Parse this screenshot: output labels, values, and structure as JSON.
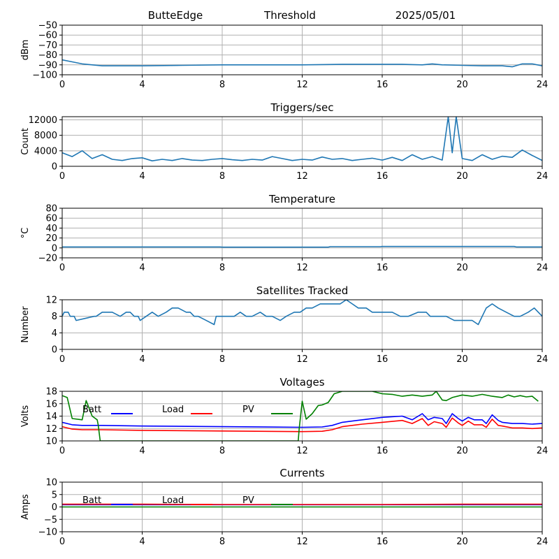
{
  "header": {
    "station": "ButteEdge",
    "title": "Threshold",
    "date": "2025/05/01"
  },
  "colors": {
    "series": "#1f77b4",
    "batt": "#0000ff",
    "load": "#ff0000",
    "pv": "#008000",
    "grid": "#b0b0b0"
  },
  "chart_data": [
    {
      "type": "line",
      "title": "",
      "xlabel": "",
      "ylabel": "dBm",
      "xlim": [
        0,
        24
      ],
      "xticks": [
        0,
        4,
        8,
        12,
        16,
        20,
        24
      ],
      "ylim": [
        -100,
        -50
      ],
      "yticks": [
        -100,
        -90,
        -80,
        -70,
        -60,
        -50
      ],
      "grid": true,
      "series": [
        {
          "x": [
            0,
            0.5,
            1,
            1.5,
            2,
            3,
            4,
            6,
            8,
            10,
            12,
            14,
            16,
            17,
            18,
            18.5,
            19,
            20,
            21,
            22,
            22.5,
            23,
            23.5,
            24
          ],
          "y": [
            -85,
            -87,
            -89,
            -90,
            -91,
            -91,
            -91,
            -90.5,
            -90,
            -90,
            -90,
            -89.5,
            -89.5,
            -89.5,
            -90,
            -89,
            -90,
            -90.5,
            -91,
            -91,
            -92,
            -89,
            -89,
            -91
          ]
        }
      ]
    },
    {
      "type": "line",
      "title": "Triggers/sec",
      "xlabel": "",
      "ylabel": "Count",
      "xlim": [
        0,
        24
      ],
      "xticks": [
        0,
        4,
        8,
        12,
        16,
        20,
        24
      ],
      "ylim": [
        0,
        12800
      ],
      "yticks": [
        0,
        4000,
        8000,
        12000
      ],
      "grid": true,
      "series": [
        {
          "x": [
            0,
            0.5,
            1,
            1.5,
            2,
            2.5,
            3,
            3.5,
            4,
            4.5,
            5,
            5.5,
            6,
            6.5,
            7,
            7.5,
            8,
            8.5,
            9,
            9.5,
            10,
            10.5,
            11,
            11.5,
            12,
            12.5,
            13,
            13.5,
            14,
            14.5,
            15,
            15.5,
            16,
            16.5,
            17,
            17.5,
            18,
            18.5,
            19,
            19.3,
            19.5,
            19.7,
            20,
            20.5,
            21,
            21.5,
            22,
            22.5,
            23,
            23.5,
            24
          ],
          "y": [
            3500,
            2500,
            4000,
            2000,
            3000,
            1800,
            1500,
            2000,
            2200,
            1400,
            1800,
            1500,
            2000,
            1600,
            1500,
            1800,
            2000,
            1700,
            1500,
            1800,
            1600,
            2500,
            2000,
            1500,
            1800,
            1600,
            2400,
            1800,
            2000,
            1500,
            1800,
            2100,
            1600,
            2300,
            1500,
            3000,
            1800,
            2500,
            1600,
            12800,
            3500,
            12800,
            2000,
            1500,
            3000,
            1800,
            2600,
            2300,
            4200,
            2800,
            1500
          ]
        }
      ]
    },
    {
      "type": "line",
      "title": "Temperature",
      "xlabel": "",
      "ylabel": "°C",
      "xlim": [
        0,
        24
      ],
      "xticks": [
        0,
        4,
        8,
        12,
        16,
        20,
        24
      ],
      "ylim": [
        -20,
        80
      ],
      "yticks": [
        -20,
        0,
        20,
        40,
        60,
        80
      ],
      "grid": true,
      "series": [
        {
          "x": [
            0,
            7.9,
            8,
            13.3,
            13.4,
            15.9,
            16,
            22.6,
            22.7,
            24
          ],
          "y": [
            2,
            2,
            1.5,
            1.5,
            2.5,
            2.5,
            3,
            3,
            2,
            2
          ]
        }
      ]
    },
    {
      "type": "line",
      "title": "Satellites Tracked",
      "xlabel": "",
      "ylabel": "Number",
      "xlim": [
        0,
        24
      ],
      "xticks": [
        0,
        4,
        8,
        12,
        16,
        20,
        24
      ],
      "ylim": [
        0,
        12
      ],
      "yticks": [
        0,
        4,
        8,
        12
      ],
      "grid": true,
      "series": [
        {
          "x": [
            0,
            0.1,
            0.3,
            0.4,
            0.6,
            0.7,
            1.6,
            1.7,
            2,
            2.5,
            2.9,
            3.2,
            3.4,
            3.6,
            3.8,
            3.9,
            4.2,
            4.5,
            4.8,
            5.2,
            5.5,
            5.8,
            6.2,
            6.4,
            6.6,
            6.8,
            7.2,
            7.6,
            7.7,
            8,
            8.6,
            8.9,
            9.2,
            9.5,
            9.9,
            10.2,
            10.5,
            10.9,
            11.2,
            11.6,
            11.9,
            12.2,
            12.5,
            12.9,
            13.3,
            13.9,
            14.2,
            14.5,
            14.8,
            15.2,
            15.5,
            15.9,
            16.2,
            16.5,
            16.9,
            17.3,
            17.8,
            18.2,
            18.4,
            18.6,
            18.9,
            19.2,
            19.6,
            19.9,
            20.5,
            20.8,
            21,
            21.2,
            21.5,
            21.8,
            22.2,
            22.6,
            22.9,
            23.3,
            23.6,
            24
          ],
          "y": [
            8,
            9,
            9,
            8,
            8,
            7,
            8,
            8,
            9,
            9,
            8,
            9,
            9,
            8,
            8,
            7,
            8,
            9,
            8,
            9,
            10,
            10,
            9,
            9,
            8,
            8,
            7,
            6,
            8,
            8,
            8,
            9,
            8,
            8,
            9,
            8,
            8,
            7,
            8,
            9,
            9,
            10,
            10,
            11,
            11,
            11,
            12,
            11,
            10,
            10,
            9,
            9,
            9,
            9,
            8,
            8,
            9,
            9,
            8,
            8,
            8,
            8,
            7,
            7,
            7,
            6,
            8,
            10,
            11,
            10,
            9,
            8,
            8,
            9,
            10,
            8
          ]
        }
      ]
    },
    {
      "type": "line",
      "title": "Voltages",
      "xlabel": "",
      "ylabel": "Volts",
      "xlim": [
        0,
        24
      ],
      "xticks": [
        0,
        4,
        8,
        12,
        16,
        20,
        24
      ],
      "ylim": [
        10,
        18
      ],
      "yticks": [
        10,
        12,
        14,
        16,
        18
      ],
      "grid": true,
      "legend": "top-left, horizontal",
      "series": [
        {
          "name": "Batt",
          "color": "#0000ff",
          "x": [
            0,
            0.5,
            1,
            2,
            4,
            8,
            12,
            13,
            13.5,
            14,
            15,
            16,
            17,
            17.5,
            18,
            18.3,
            18.6,
            19,
            19.2,
            19.5,
            19.8,
            20,
            20.3,
            20.6,
            21,
            21.2,
            21.5,
            21.8,
            22,
            22.5,
            23,
            23.5,
            24
          ],
          "y": [
            13,
            12.6,
            12.5,
            12.5,
            12.4,
            12.3,
            12.2,
            12.25,
            12.5,
            13,
            13.4,
            13.8,
            14,
            13.4,
            14.4,
            13.4,
            13.8,
            13.6,
            12.8,
            14.4,
            13.6,
            13.2,
            13.8,
            13.4,
            13.4,
            12.8,
            14.2,
            13.3,
            13,
            12.8,
            12.8,
            12.7,
            12.8
          ]
        },
        {
          "name": "Load",
          "color": "#ff0000",
          "x": [
            0,
            0.5,
            1,
            2,
            4,
            8,
            12,
            13,
            13.5,
            14,
            15,
            16,
            17,
            17.5,
            18,
            18.3,
            18.6,
            19,
            19.2,
            19.5,
            19.8,
            20,
            20.3,
            20.6,
            21,
            21.2,
            21.5,
            21.8,
            22,
            22.5,
            23,
            23.5,
            24
          ],
          "y": [
            12.3,
            11.9,
            11.8,
            11.8,
            11.7,
            11.6,
            11.5,
            11.55,
            11.8,
            12.3,
            12.7,
            13,
            13.3,
            12.8,
            13.6,
            12.5,
            13.1,
            12.8,
            12.2,
            13.7,
            12.9,
            12.5,
            13.2,
            12.6,
            12.6,
            12.2,
            13.5,
            12.5,
            12.4,
            12.1,
            12.1,
            12,
            12.1
          ]
        },
        {
          "name": "PV",
          "color": "#008000",
          "x": [
            0,
            0.25,
            0.5,
            1,
            1.2,
            1.5,
            1.75,
            1.8,
            1.9,
            11.8,
            11.85,
            12,
            12.2,
            12.5,
            12.8,
            13,
            13.3,
            13.6,
            14,
            14.5,
            15,
            15.5,
            16,
            16.5,
            17,
            17.5,
            18,
            18.5,
            18.7,
            19,
            19.2,
            19.5,
            20,
            20.5,
            21,
            21.5,
            22,
            22.3,
            22.6,
            22.9,
            23.2,
            23.5,
            23.8
          ],
          "y": [
            17.3,
            17,
            13.6,
            13.4,
            16.5,
            14,
            13.4,
            12.6,
            10,
            10,
            12,
            16.4,
            13.5,
            14.4,
            15.7,
            15.8,
            16.2,
            17.6,
            18,
            18,
            18,
            18,
            17.6,
            17.5,
            17.2,
            17.4,
            17.2,
            17.4,
            18,
            16.6,
            16.5,
            17,
            17.4,
            17.2,
            17.5,
            17.2,
            17,
            17.4,
            17.1,
            17.3,
            17.1,
            17.2,
            16.4
          ]
        }
      ]
    },
    {
      "type": "line",
      "title": "Currents",
      "xlabel": "",
      "ylabel": "Amps",
      "xlim": [
        0,
        24
      ],
      "xticks": [
        0,
        4,
        8,
        12,
        16,
        20,
        24
      ],
      "ylim": [
        -10,
        10
      ],
      "yticks": [
        -10,
        -5,
        0,
        5,
        10
      ],
      "grid": true,
      "legend": "top-left, horizontal",
      "series": [
        {
          "name": "Batt",
          "color": "#0000ff",
          "x": [
            0,
            24
          ],
          "y": [
            0.9,
            0.9
          ]
        },
        {
          "name": "Load",
          "color": "#ff0000",
          "x": [
            0,
            4,
            8,
            12,
            16,
            20,
            24
          ],
          "y": [
            1.1,
            1.1,
            1.0,
            1.0,
            1.0,
            1.1,
            1.1
          ]
        },
        {
          "name": "PV",
          "color": "#008000",
          "x": [
            0,
            24
          ],
          "y": [
            0,
            0
          ]
        }
      ]
    }
  ]
}
